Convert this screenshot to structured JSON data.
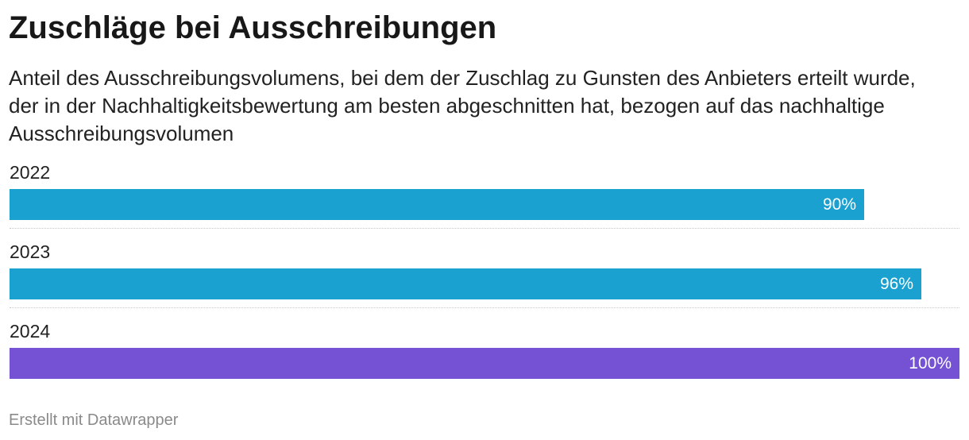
{
  "header": {
    "title": "Zuschläge bei Ausschreibungen",
    "subtitle": "Anteil des Ausschreibungsvolumens, bei dem der Zuschlag zu Gunsten des Anbieters erteilt wurde, der in der Nachhaltigkeitsbewertung am besten abgeschnitten hat, bezogen auf das nachhaltige Ausschreibungsvolumen"
  },
  "footer": {
    "credit": "Erstellt mit Datawrapper"
  },
  "chart_data": {
    "type": "bar",
    "orientation": "horizontal",
    "title": "Zuschläge bei Ausschreibungen",
    "categories": [
      "2022",
      "2023",
      "2024"
    ],
    "values": [
      90,
      96,
      100
    ],
    "value_labels": [
      "90%",
      "96%",
      "100%"
    ],
    "colors": [
      "#1aa1d0",
      "#1aa1d0",
      "#7552d4"
    ],
    "xlim": [
      0,
      100
    ],
    "grid": false,
    "legend": "none"
  }
}
